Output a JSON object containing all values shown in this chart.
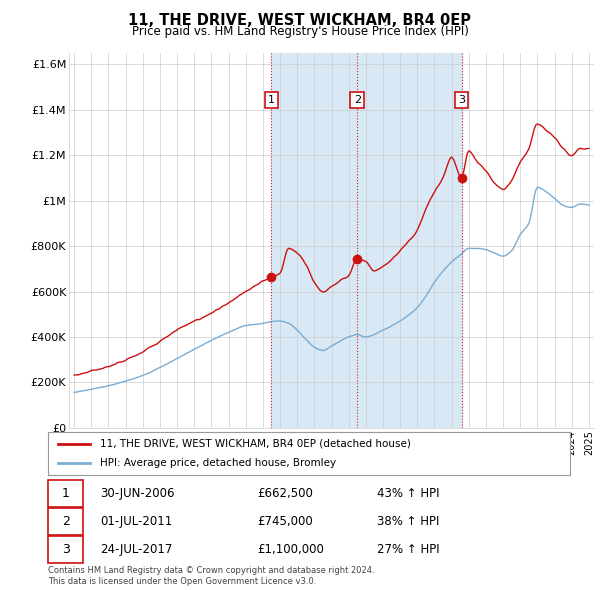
{
  "title": "11, THE DRIVE, WEST WICKHAM, BR4 0EP",
  "subtitle": "Price paid vs. HM Land Registry's House Price Index (HPI)",
  "ylim": [
    0,
    1650000
  ],
  "yticks": [
    0,
    200000,
    400000,
    600000,
    800000,
    1000000,
    1200000,
    1400000,
    1600000
  ],
  "ytick_labels": [
    "£0",
    "£200K",
    "£400K",
    "£600K",
    "£800K",
    "£1M",
    "£1.2M",
    "£1.4M",
    "£1.6M"
  ],
  "xlim_start": 1994.7,
  "xlim_end": 2025.3,
  "red_line_color": "#cc1111",
  "blue_line_color": "#7aadd4",
  "marker_color": "#cc1111",
  "vline_color": "#cc1111",
  "plot_bg_color": "#ffffff",
  "shade_color": "#d8e8f5",
  "grid_color": "#cccccc",
  "legend_entries": [
    "11, THE DRIVE, WEST WICKHAM, BR4 0EP (detached house)",
    "HPI: Average price, detached house, Bromley"
  ],
  "purchases": [
    {
      "num": 1,
      "date": "30-JUN-2006",
      "price": 662500,
      "pct": "43%",
      "year": 2006.5
    },
    {
      "num": 2,
      "date": "01-JUL-2011",
      "price": 745000,
      "pct": "38%",
      "year": 2011.5
    },
    {
      "num": 3,
      "date": "24-JUL-2017",
      "price": 1100000,
      "pct": "27%",
      "year": 2017.58
    }
  ],
  "footer": "Contains HM Land Registry data © Crown copyright and database right 2024.\nThis data is licensed under the Open Government Licence v3.0."
}
